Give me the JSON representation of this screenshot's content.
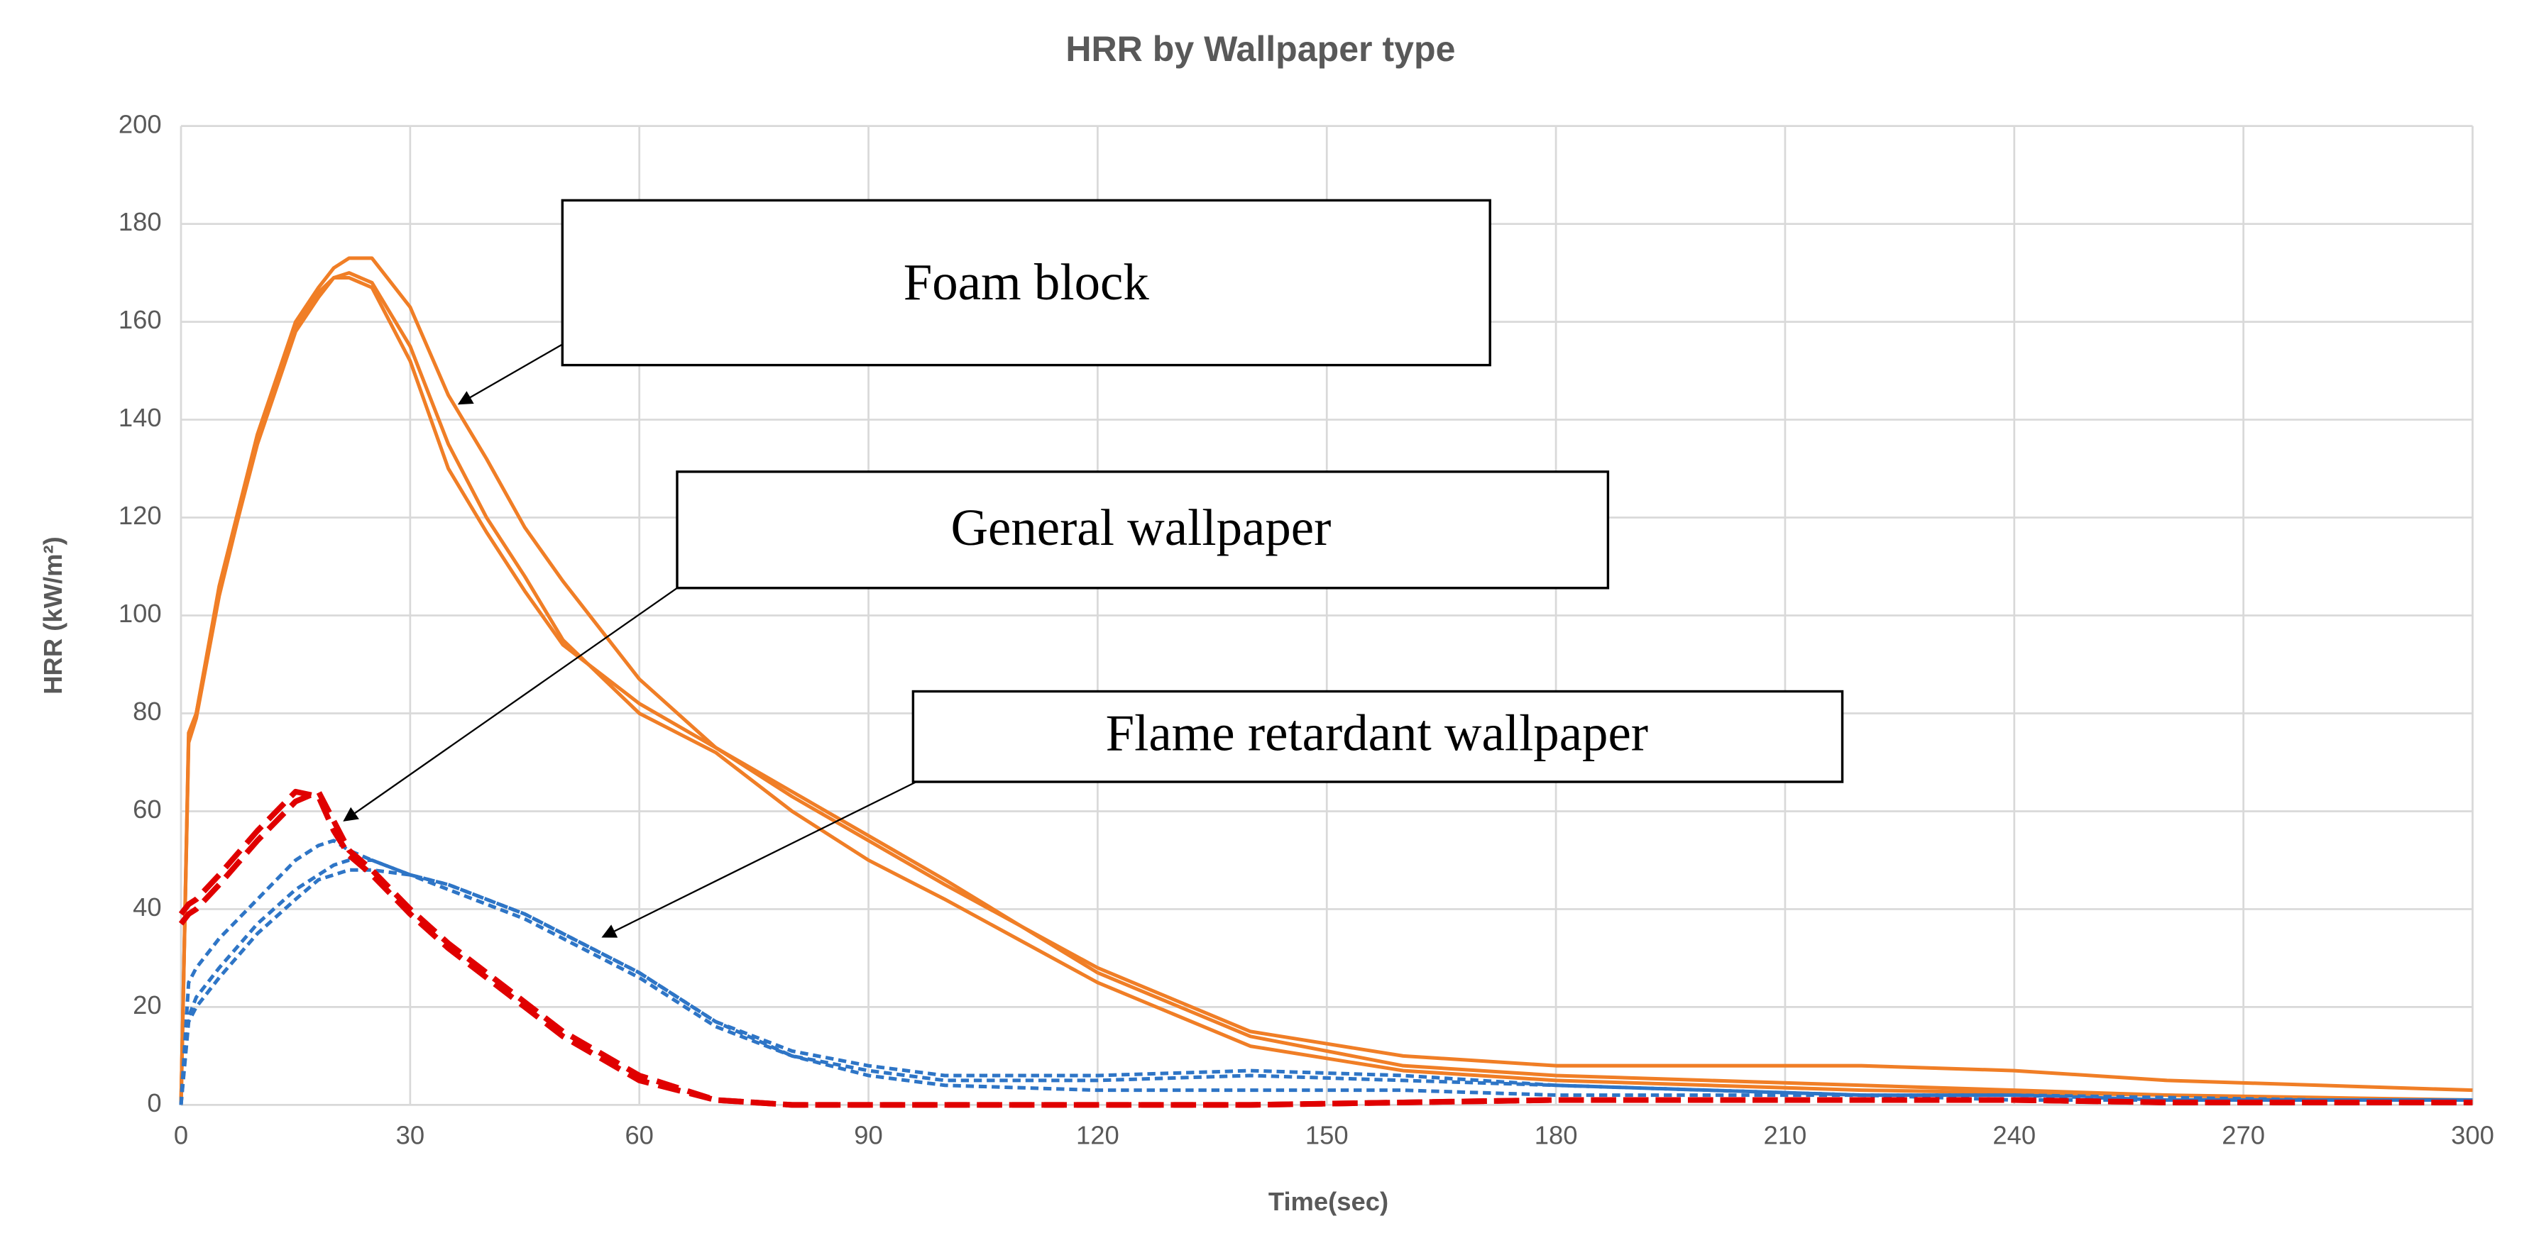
{
  "chart_data": {
    "type": "line",
    "title": "HRR by Wallpaper type",
    "x_label": "Time(sec)",
    "y_label": "HRR (kW/m²)",
    "x": [
      0,
      1,
      2,
      5,
      10,
      15,
      18,
      20,
      22,
      25,
      30,
      35,
      40,
      45,
      50,
      60,
      70,
      80,
      90,
      100,
      120,
      140,
      160,
      180,
      200,
      220,
      240,
      260,
      280,
      300
    ],
    "series": [
      {
        "color": "#f07e26",
        "line_style": "solid",
        "values": [
          0,
          75,
          80,
          105,
          135,
          158,
          165,
          169,
          170,
          168,
          155,
          135,
          120,
          108,
          95,
          80,
          72,
          60,
          50,
          42,
          25,
          12,
          7,
          5,
          4,
          3,
          2.5,
          2,
          1.5,
          1
        ]
      },
      {
        "color": "#f07e26",
        "line_style": "solid",
        "values": [
          0,
          76,
          80,
          106,
          137,
          160,
          167,
          171,
          173,
          173,
          163,
          145,
          132,
          118,
          107,
          87,
          73,
          63,
          54,
          45,
          28,
          15,
          10,
          8,
          8,
          8,
          7,
          5,
          4,
          3
        ]
      },
      {
        "color": "#f07e26",
        "line_style": "solid",
        "values": [
          0,
          74,
          79,
          104,
          136,
          159,
          166,
          169,
          169,
          167,
          152,
          130,
          117,
          105,
          94,
          82,
          73,
          64,
          55,
          46,
          27,
          14,
          8,
          6,
          5,
          4,
          3,
          2,
          1,
          1
        ]
      },
      {
        "color": "#2e75c6",
        "line_style": "dashed",
        "values": [
          0,
          17,
          20,
          26,
          35,
          42,
          46,
          47,
          48,
          48,
          47,
          45,
          42,
          39,
          35,
          27,
          17,
          11,
          8,
          6,
          6,
          7,
          6,
          4,
          3,
          2,
          2,
          1.5,
          1,
          1
        ]
      },
      {
        "color": "#2e75c6",
        "line_style": "dashed",
        "values": [
          0,
          25,
          28,
          34,
          42,
          50,
          53,
          54,
          52,
          50,
          47,
          45,
          42,
          39,
          35,
          27,
          17,
          10,
          7,
          5,
          5,
          6,
          5,
          4,
          3,
          2,
          2,
          1,
          1,
          1
        ]
      },
      {
        "color": "#2e75c6",
        "line_style": "dashed",
        "values": [
          0,
          18,
          22,
          28,
          37,
          44,
          47,
          49,
          50,
          50,
          47,
          44,
          41,
          38,
          34,
          26,
          16,
          10,
          6,
          4,
          3,
          3,
          3,
          2,
          2,
          2,
          1,
          1,
          1,
          1
        ]
      },
      {
        "color": "#e00000",
        "line_style": "longdash",
        "values": [
          37,
          39,
          40,
          45,
          54,
          62,
          64,
          58,
          52,
          48,
          40,
          33,
          27,
          21,
          15,
          6,
          1,
          0,
          0,
          0,
          0,
          0,
          0.5,
          1,
          1,
          1,
          1,
          0.5,
          0.5,
          0.5
        ]
      },
      {
        "color": "#e00000",
        "line_style": "longdash",
        "values": [
          39,
          41,
          42,
          47,
          56,
          64,
          63,
          56,
          51,
          47,
          39,
          32,
          26,
          20,
          14,
          5,
          1,
          0,
          0,
          0,
          0,
          0,
          0.5,
          1,
          1,
          1,
          1,
          0.5,
          0.5,
          0.5
        ]
      }
    ],
    "xlim": [
      0,
      300
    ],
    "xticks": [
      0,
      30,
      60,
      90,
      120,
      150,
      180,
      210,
      240,
      270,
      300
    ],
    "ylim": [
      0,
      200
    ],
    "yticks": [
      0,
      20,
      40,
      60,
      80,
      100,
      120,
      140,
      160,
      180,
      200
    ],
    "grid": true,
    "annotations": [
      "Foam block",
      "General wallpaper",
      "Flame retardant wallpaper"
    ]
  }
}
